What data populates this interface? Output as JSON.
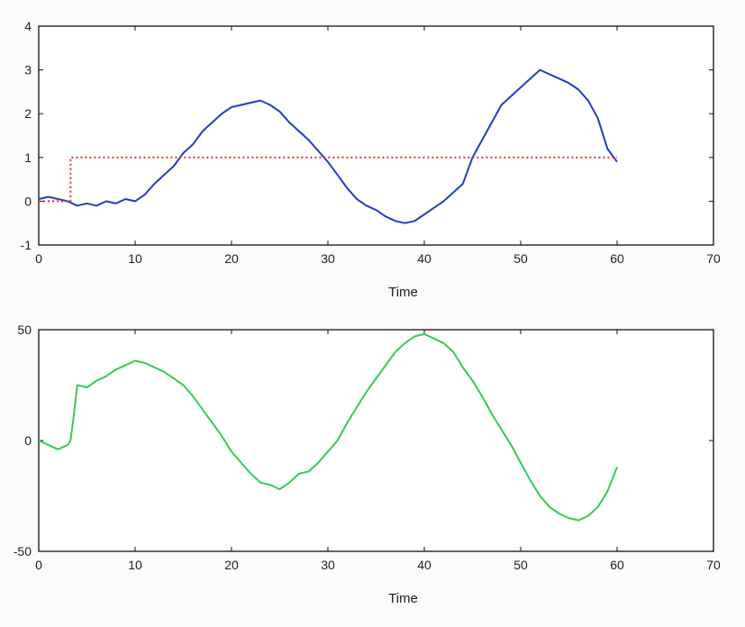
{
  "colors": {
    "blue_series": "#1f3fbf",
    "red_series": "#e03030",
    "green_series": "#33cc55",
    "axes": "#111111"
  },
  "chart_data": [
    {
      "type": "line",
      "title": "",
      "xlabel": "Time",
      "ylabel": "",
      "xlim": [
        0,
        70
      ],
      "ylim": [
        -1,
        4
      ],
      "xticks": [
        "0",
        "10",
        "20",
        "30",
        "40",
        "50",
        "60",
        "70"
      ],
      "yticks": [
        "-1",
        "0",
        "1",
        "2",
        "3",
        "4"
      ],
      "grid": false,
      "series": [
        {
          "style": "solid",
          "color": "#1f3fbf",
          "x": [
            0,
            1,
            2,
            3,
            4,
            5,
            6,
            7,
            8,
            9,
            10,
            11,
            12,
            13,
            14,
            15,
            16,
            17,
            18,
            19,
            20,
            21,
            22,
            23,
            24,
            25,
            26,
            27,
            28,
            29,
            30,
            31,
            32,
            33,
            34,
            35,
            36,
            37,
            38,
            39,
            40,
            41,
            42,
            43,
            44,
            45,
            46,
            47,
            48,
            49,
            50,
            51,
            52,
            53,
            54,
            55,
            56,
            57,
            58,
            59,
            60
          ],
          "y": [
            0.05,
            0.1,
            0.05,
            0.0,
            -0.1,
            -0.05,
            -0.1,
            0.0,
            -0.05,
            0.05,
            0.0,
            0.15,
            0.4,
            0.6,
            0.8,
            1.1,
            1.3,
            1.6,
            1.8,
            2.0,
            2.15,
            2.2,
            2.25,
            2.3,
            2.2,
            2.05,
            1.8,
            1.6,
            1.4,
            1.15,
            0.9,
            0.6,
            0.3,
            0.05,
            -0.1,
            -0.2,
            -0.35,
            -0.45,
            -0.5,
            -0.45,
            -0.3,
            -0.15,
            0.0,
            0.2,
            0.4,
            1.0,
            1.4,
            1.8,
            2.2,
            2.4,
            2.6,
            2.8,
            3.0,
            2.9,
            2.8,
            2.7,
            2.55,
            2.3,
            1.9,
            1.2,
            0.9
          ]
        },
        {
          "style": "dotted",
          "color": "#e03030",
          "x": [
            0,
            3.3,
            3.3,
            60
          ],
          "y": [
            0,
            0,
            1,
            1
          ]
        }
      ]
    },
    {
      "type": "line",
      "title": "",
      "xlabel": "Time",
      "ylabel": "",
      "xlim": [
        0,
        70
      ],
      "ylim": [
        -50,
        50
      ],
      "xticks": [
        "0",
        "10",
        "20",
        "30",
        "40",
        "50",
        "60",
        "70"
      ],
      "yticks": [
        "-50",
        "0",
        "50"
      ],
      "grid": false,
      "series": [
        {
          "style": "solid",
          "color": "#33cc55",
          "x": [
            0,
            1,
            2,
            3,
            3.3,
            3.6,
            4,
            5,
            6,
            7,
            8,
            9,
            10,
            11,
            12,
            13,
            14,
            15,
            16,
            17,
            18,
            19,
            20,
            21,
            22,
            23,
            24,
            25,
            26,
            27,
            28,
            29,
            30,
            31,
            32,
            33,
            34,
            35,
            36,
            37,
            38,
            39,
            40,
            41,
            42,
            43,
            44,
            45,
            46,
            47,
            48,
            49,
            50,
            51,
            52,
            53,
            54,
            55,
            56,
            57,
            58,
            59,
            60
          ],
          "y": [
            0,
            -2,
            -4,
            -2,
            0,
            10,
            25,
            24,
            27,
            29,
            32,
            34,
            36,
            35,
            33,
            31,
            28,
            25,
            20,
            14,
            8,
            2,
            -5,
            -10,
            -15,
            -19,
            -20,
            -22,
            -19,
            -15,
            -14,
            -10,
            -5,
            0,
            8,
            15,
            22,
            28,
            34,
            40,
            44,
            47,
            48,
            46,
            44,
            40,
            33,
            27,
            20,
            12,
            5,
            -2,
            -10,
            -18,
            -25,
            -30,
            -33,
            -35,
            -36,
            -34,
            -30,
            -23,
            -12
          ]
        }
      ]
    }
  ]
}
